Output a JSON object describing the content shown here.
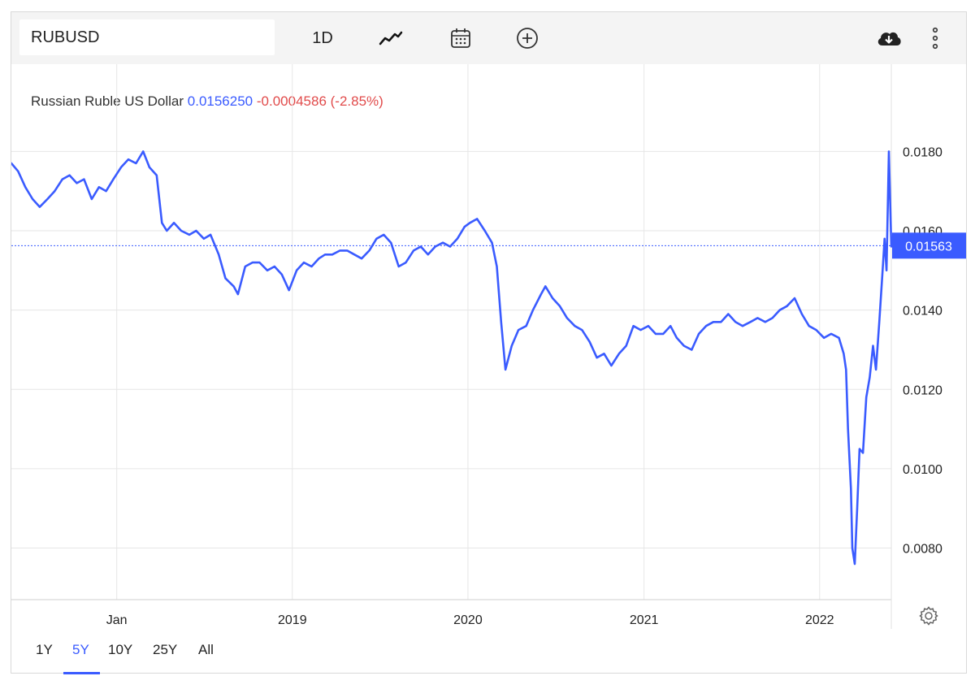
{
  "toolbar": {
    "symbol": "RUBUSD",
    "interval": "1D",
    "icons": [
      "line-chart-icon",
      "calendar-icon",
      "plus-circle-icon",
      "cloud-download-icon",
      "more-vertical-icon"
    ]
  },
  "header": {
    "name": "Russian Ruble US Dollar",
    "value": "0.0156250",
    "change": "-0.0004586 (-2.85%)",
    "value_color": "#3a5bff",
    "change_color": "#e14b4b"
  },
  "ranges": {
    "items": [
      "1Y",
      "5Y",
      "10Y",
      "25Y",
      "All"
    ],
    "active": "5Y"
  },
  "chart_data": {
    "type": "line",
    "title": "",
    "xlabel": "",
    "ylabel": "",
    "x_ticks": [
      "Jan",
      "2019",
      "2020",
      "2021",
      "2022"
    ],
    "x_tick_dates": [
      "2018-01-01",
      "2019-01-01",
      "2020-01-01",
      "2021-01-01",
      "2022-01-01"
    ],
    "y_ticks": [
      "0.0080",
      "0.0100",
      "0.0120",
      "0.0140",
      "0.0160",
      "0.0180"
    ],
    "y_tick_values": [
      0.008,
      0.01,
      0.012,
      0.014,
      0.016,
      0.018
    ],
    "ylim": [
      0.0067,
      0.0202
    ],
    "xlim": [
      "2017-05-27",
      "2022-05-30"
    ],
    "last_value_label": "0.01563",
    "last_value": 0.015625,
    "line_color": "#3a5bff",
    "grid": true,
    "series": [
      {
        "name": "",
        "x": [
          "2017-05-27",
          "2017-06-10",
          "2017-06-25",
          "2017-07-10",
          "2017-07-25",
          "2017-08-10",
          "2017-08-25",
          "2017-09-10",
          "2017-09-25",
          "2017-10-10",
          "2017-10-25",
          "2017-11-10",
          "2017-11-25",
          "2017-12-10",
          "2017-12-25",
          "2018-01-10",
          "2018-01-25",
          "2018-02-10",
          "2018-02-25",
          "2018-03-10",
          "2018-03-25",
          "2018-04-05",
          "2018-04-15",
          "2018-04-30",
          "2018-05-15",
          "2018-06-01",
          "2018-06-15",
          "2018-07-01",
          "2018-07-15",
          "2018-08-01",
          "2018-08-15",
          "2018-09-01",
          "2018-09-10",
          "2018-09-25",
          "2018-10-10",
          "2018-10-25",
          "2018-11-10",
          "2018-11-25",
          "2018-12-10",
          "2018-12-25",
          "2019-01-10",
          "2019-01-25",
          "2019-02-10",
          "2019-02-25",
          "2019-03-10",
          "2019-03-25",
          "2019-04-10",
          "2019-04-25",
          "2019-05-10",
          "2019-05-25",
          "2019-06-10",
          "2019-06-25",
          "2019-07-10",
          "2019-07-25",
          "2019-08-10",
          "2019-08-25",
          "2019-09-10",
          "2019-09-25",
          "2019-10-10",
          "2019-10-25",
          "2019-11-10",
          "2019-11-25",
          "2019-12-10",
          "2019-12-25",
          "2020-01-05",
          "2020-01-20",
          "2020-02-05",
          "2020-02-20",
          "2020-03-01",
          "2020-03-10",
          "2020-03-19",
          "2020-04-01",
          "2020-04-15",
          "2020-05-01",
          "2020-05-15",
          "2020-06-01",
          "2020-06-10",
          "2020-06-25",
          "2020-07-10",
          "2020-07-25",
          "2020-08-10",
          "2020-08-25",
          "2020-09-10",
          "2020-09-25",
          "2020-10-10",
          "2020-10-25",
          "2020-11-10",
          "2020-11-25",
          "2020-12-10",
          "2020-12-25",
          "2021-01-10",
          "2021-01-25",
          "2021-02-10",
          "2021-02-25",
          "2021-03-10",
          "2021-03-25",
          "2021-04-10",
          "2021-04-25",
          "2021-05-10",
          "2021-05-25",
          "2021-06-10",
          "2021-06-25",
          "2021-07-10",
          "2021-07-25",
          "2021-08-10",
          "2021-08-25",
          "2021-09-10",
          "2021-09-25",
          "2021-10-10",
          "2021-10-25",
          "2021-11-10",
          "2021-11-25",
          "2021-12-10",
          "2021-12-25",
          "2022-01-10",
          "2022-01-25",
          "2022-02-10",
          "2022-02-20",
          "2022-02-25",
          "2022-03-01",
          "2022-03-07",
          "2022-03-10",
          "2022-03-15",
          "2022-03-20",
          "2022-03-25",
          "2022-04-01",
          "2022-04-08",
          "2022-04-15",
          "2022-04-22",
          "2022-04-28",
          "2022-05-05",
          "2022-05-12",
          "2022-05-16",
          "2022-05-20",
          "2022-05-25",
          "2022-05-30"
        ],
        "y": [
          0.0177,
          0.0175,
          0.0171,
          0.0168,
          0.0166,
          0.0168,
          0.017,
          0.0173,
          0.0174,
          0.0172,
          0.0173,
          0.0168,
          0.0171,
          0.017,
          0.0173,
          0.0176,
          0.0178,
          0.0177,
          0.018,
          0.0176,
          0.0174,
          0.0162,
          0.016,
          0.0162,
          0.016,
          0.0159,
          0.016,
          0.0158,
          0.0159,
          0.0154,
          0.0148,
          0.0146,
          0.0144,
          0.0151,
          0.0152,
          0.0152,
          0.015,
          0.0151,
          0.0149,
          0.0145,
          0.015,
          0.0152,
          0.0151,
          0.0153,
          0.0154,
          0.0154,
          0.0155,
          0.0155,
          0.0154,
          0.0153,
          0.0155,
          0.0158,
          0.0159,
          0.0157,
          0.0151,
          0.0152,
          0.0155,
          0.0156,
          0.0154,
          0.0156,
          0.0157,
          0.0156,
          0.0158,
          0.0161,
          0.0162,
          0.0163,
          0.016,
          0.0157,
          0.0151,
          0.0137,
          0.0125,
          0.0131,
          0.0135,
          0.0136,
          0.014,
          0.0144,
          0.0146,
          0.0143,
          0.0141,
          0.0138,
          0.0136,
          0.0135,
          0.0132,
          0.0128,
          0.0129,
          0.0126,
          0.0129,
          0.0131,
          0.0136,
          0.0135,
          0.0136,
          0.0134,
          0.0134,
          0.0136,
          0.0133,
          0.0131,
          0.013,
          0.0134,
          0.0136,
          0.0137,
          0.0137,
          0.0139,
          0.0137,
          0.0136,
          0.0137,
          0.0138,
          0.0137,
          0.0138,
          0.014,
          0.0141,
          0.0143,
          0.0139,
          0.0136,
          0.0135,
          0.0133,
          0.0134,
          0.0133,
          0.0129,
          0.0125,
          0.011,
          0.0095,
          0.008,
          0.0076,
          0.009,
          0.0105,
          0.0104,
          0.0118,
          0.0123,
          0.0131,
          0.0125,
          0.0137,
          0.015,
          0.0158,
          0.015,
          0.018,
          0.0156
        ]
      }
    ]
  }
}
